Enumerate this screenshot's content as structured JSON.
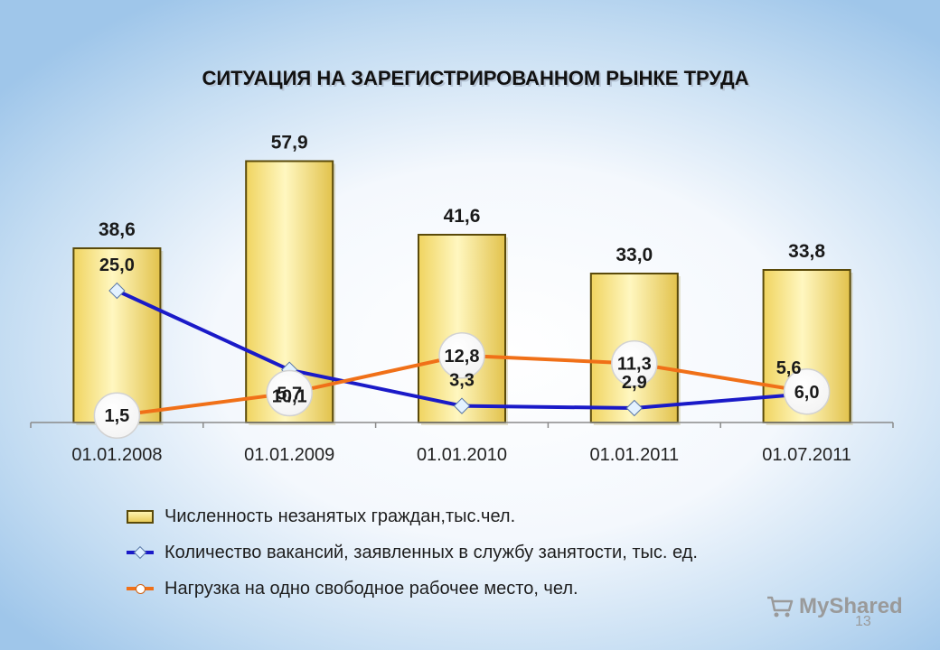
{
  "chart_data": {
    "type": "bar",
    "title": "СИТУАЦИЯ НА ЗАРЕГИСТРИРОВАННОМ РЫНКЕ ТРУДА",
    "categories": [
      "01.01.2008",
      "01.01.2009",
      "01.01.2010",
      "01.01.2011",
      "01.07.2011"
    ],
    "series": [
      {
        "name": "Численность незанятых граждан,тыс.чел.",
        "type": "bar",
        "values": [
          38.6,
          57.9,
          41.6,
          33.0,
          33.8
        ],
        "labels": [
          "38,6",
          "57,9",
          "41,6",
          "33,0",
          "33,8"
        ],
        "color": "#f3dc7a"
      },
      {
        "name": "Количество вакансий, заявленных в службу занятости, тыс. ед.",
        "type": "line",
        "values": [
          25.0,
          10.1,
          3.3,
          2.9,
          5.6
        ],
        "labels": [
          "25,0",
          "10,1",
          "3,3",
          "2,9",
          "5,6"
        ],
        "color": "#1a1ac8"
      },
      {
        "name": "Нагрузка на одно свободное рабочее место, чел.",
        "type": "line",
        "values": [
          1.5,
          5.7,
          12.8,
          11.3,
          6.0
        ],
        "labels": [
          "1,5",
          "5,7",
          "12,8",
          "11,3",
          "6,0"
        ],
        "color": "#f07018"
      }
    ],
    "grid": false,
    "legend": "bottom"
  },
  "watermark": {
    "text": "MyShared",
    "icon": "cart-icon"
  },
  "page_number": "13"
}
